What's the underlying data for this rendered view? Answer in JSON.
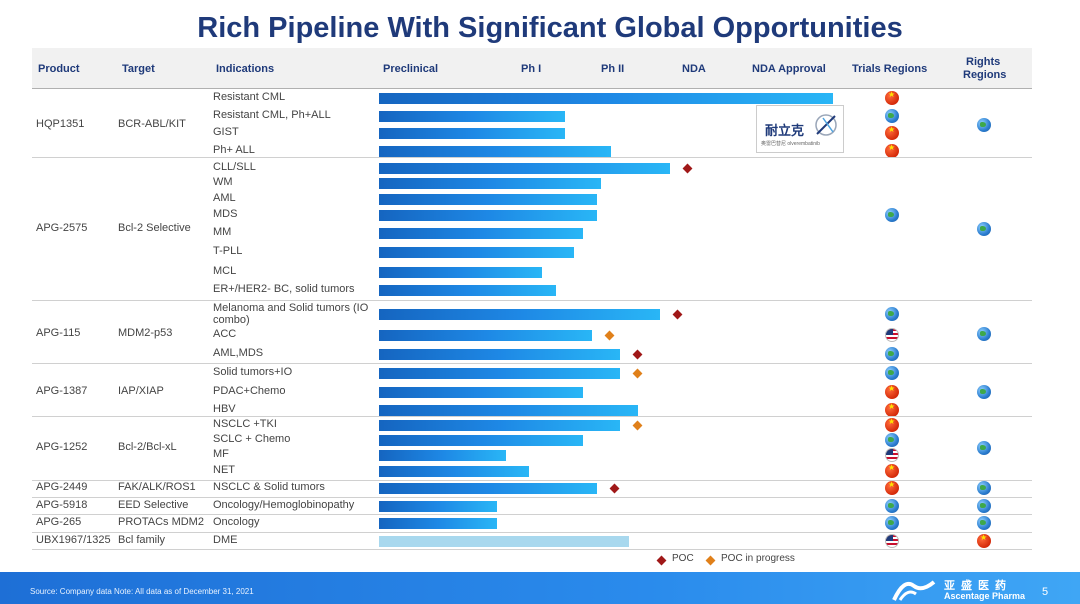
{
  "title": "Rich Pipeline With Significant Global Opportunities",
  "headers": {
    "product": "Product",
    "target": "Target",
    "indications": "Indications",
    "preclinical": "Preclinical",
    "ph1": "Ph I",
    "ph2": "Ph II",
    "nda": "NDA",
    "nda_approval": "NDA Approval",
    "trials_regions": "Trials Regions",
    "rights_regions_1": "Rights",
    "rights_regions_2": "Regions"
  },
  "chart_data": {
    "type": "bar",
    "stages": [
      "Preclinical",
      "Ph I",
      "Ph II",
      "NDA",
      "NDA Approval"
    ],
    "legend": [
      {
        "label": "POC",
        "color": "#a01818"
      },
      {
        "label": "POC in progress",
        "color": "#e0801a"
      }
    ],
    "groups": [
      {
        "product": "HQP1351",
        "target": "BCR-ABL/KIT",
        "rights": [
          "globe"
        ],
        "items": [
          {
            "indication": "Resistant CML",
            "progress": 1.0,
            "marker": null,
            "trials": [
              "cn"
            ]
          },
          {
            "indication": "Resistant CML, Ph+ALL",
            "progress": 0.41,
            "marker": null,
            "trials": [
              "globe"
            ]
          },
          {
            "indication": "GIST",
            "progress": 0.41,
            "marker": null,
            "trials": [
              "cn"
            ]
          },
          {
            "indication": "Ph+ ALL",
            "progress": 0.51,
            "marker": null,
            "trials": [
              "cn"
            ]
          }
        ]
      },
      {
        "product": "APG-2575",
        "target": "Bcl-2 Selective",
        "rights": [
          "globe"
        ],
        "items": [
          {
            "indication": "CLL/SLL",
            "progress": 0.64,
            "marker": "poc",
            "trials": []
          },
          {
            "indication": "WM",
            "progress": 0.49,
            "marker": null,
            "trials": []
          },
          {
            "indication": "AML",
            "progress": 0.48,
            "marker": null,
            "trials": []
          },
          {
            "indication": "MDS",
            "progress": 0.48,
            "marker": null,
            "trials": [
              "globe"
            ]
          },
          {
            "indication": "MM",
            "progress": 0.45,
            "marker": null,
            "trials": []
          },
          {
            "indication": "T-PLL",
            "progress": 0.43,
            "marker": null,
            "trials": []
          },
          {
            "indication": "MCL",
            "progress": 0.36,
            "marker": null,
            "trials": []
          },
          {
            "indication": "ER+/HER2- BC, solid tumors",
            "progress": 0.39,
            "marker": null,
            "trials": []
          }
        ]
      },
      {
        "product": "APG-115",
        "target": "MDM2-p53",
        "rights": [
          "globe"
        ],
        "items": [
          {
            "indication": "Melanoma and Solid tumors (IO combo)",
            "progress": 0.62,
            "marker": "poc",
            "trials": [
              "globe"
            ]
          },
          {
            "indication": "ACC",
            "progress": 0.47,
            "marker": "prog",
            "trials": [
              "us"
            ]
          },
          {
            "indication": "AML,MDS",
            "progress": 0.53,
            "marker": "poc",
            "trials": [
              "globe"
            ]
          }
        ]
      },
      {
        "product": "APG-1387",
        "target": "IAP/XIAP",
        "rights": [
          "globe"
        ],
        "items": [
          {
            "indication": "Solid tumors+IO",
            "progress": 0.53,
            "marker": "prog",
            "trials": [
              "globe"
            ]
          },
          {
            "indication": "PDAC+Chemo",
            "progress": 0.45,
            "marker": null,
            "trials": [
              "cn"
            ]
          },
          {
            "indication": "HBV",
            "progress": 0.57,
            "marker": null,
            "trials": [
              "cn"
            ]
          }
        ]
      },
      {
        "product": "APG-1252",
        "target": "Bcl-2/Bcl-xL",
        "rights": [
          "globe"
        ],
        "items": [
          {
            "indication": "NSCLC +TKI",
            "progress": 0.53,
            "marker": "prog",
            "trials": [
              "cn"
            ]
          },
          {
            "indication": "SCLC + Chemo",
            "progress": 0.45,
            "marker": null,
            "trials": [
              "globe"
            ]
          },
          {
            "indication": "MF",
            "progress": 0.28,
            "marker": null,
            "trials": [
              "us"
            ]
          },
          {
            "indication": "NET",
            "progress": 0.33,
            "marker": null,
            "trials": [
              "cn"
            ]
          }
        ]
      },
      {
        "product": "APG-2449",
        "target": "FAK/ALK/ROS1",
        "rights": [
          "globe"
        ],
        "items": [
          {
            "indication": "NSCLC & Solid tumors",
            "progress": 0.48,
            "marker": "poc",
            "trials": [
              "cn"
            ]
          }
        ]
      },
      {
        "product": "APG-5918",
        "target": "EED Selective",
        "rights": [
          "globe"
        ],
        "items": [
          {
            "indication": "Oncology/Hemoglobinopathy",
            "progress": 0.26,
            "marker": null,
            "trials": [
              "globe"
            ]
          }
        ]
      },
      {
        "product": "APG-265",
        "target": "PROTACs MDM2",
        "rights": [
          "globe"
        ],
        "items": [
          {
            "indication": "Oncology",
            "progress": 0.26,
            "marker": null,
            "trials": [
              "globe"
            ]
          }
        ]
      },
      {
        "product": "UBX1967/1325",
        "target": "Bcl family",
        "rights": [
          "cn"
        ],
        "items": [
          {
            "indication": "DME",
            "progress": 0.55,
            "marker": null,
            "light": true,
            "trials": [
              "us"
            ]
          }
        ]
      }
    ]
  },
  "logo": {
    "cn": "耐立克",
    "sub": "奥雷巴替尼 olverembatinib"
  },
  "footer": {
    "source": "Source: Company data Note: All data as of December 31, 2021",
    "brand_cn": "亚盛医药",
    "brand_en": "Ascentage Pharma",
    "page": "5"
  },
  "colors": {
    "title": "#1f3a7a",
    "bar_start": "#1565c0",
    "bar_end": "#29b6f6",
    "footer": "#2a8bec"
  }
}
